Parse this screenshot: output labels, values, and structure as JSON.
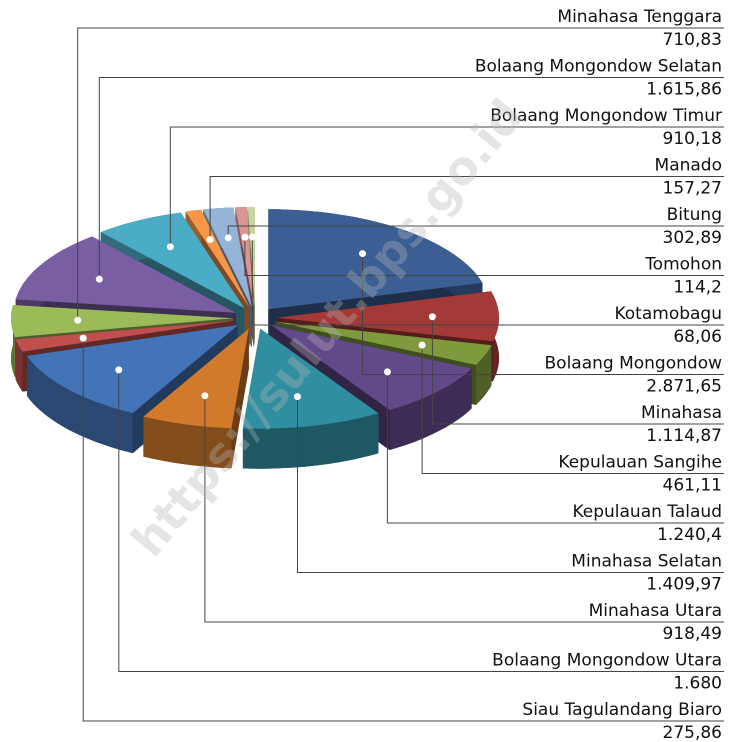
{
  "chart_data": {
    "type": "pie",
    "categories": [
      "Minahasa Tenggara",
      "Bolaang Mongondow Selatan",
      "Bolaang Mongondow Timur",
      "Manado",
      "Bitung",
      "Tomohon",
      "Kotamobagu",
      "Bolaang Mongondow",
      "Minahasa",
      "Kepulauan Sangihe",
      "Kepulauan Talaud",
      "Minahasa Selatan",
      "Minahasa Utara",
      "Bolaang Mongondow Utara",
      "Siau Tagulandang Biaro"
    ],
    "values": [
      710.83,
      1615.86,
      910.18,
      157.27,
      302.89,
      114.2,
      68.06,
      2871.65,
      1114.87,
      461.11,
      1240.4,
      1409.97,
      918.49,
      1680,
      275.86
    ],
    "value_labels": [
      "710,83",
      "1.615,86",
      "910,18",
      "157,27",
      "302,89",
      "114,2",
      "68,06",
      "2.871,65",
      "1.114,87",
      "461,11",
      "1.240,4",
      "1.409,97",
      "918,49",
      "1.680",
      "275,86"
    ],
    "colors": [
      "#9bbb59",
      "#7a5ea3",
      "#4bacc6",
      "#f79646",
      "#95b3d7",
      "#d99694",
      "#c3d69b",
      "#3b5e95",
      "#a33a37",
      "#7f9a3c",
      "#62498a",
      "#2f8ea0",
      "#d27a2c",
      "#4474b8",
      "#c0504d"
    ]
  },
  "watermark": "https://sulut.bps.go.id"
}
